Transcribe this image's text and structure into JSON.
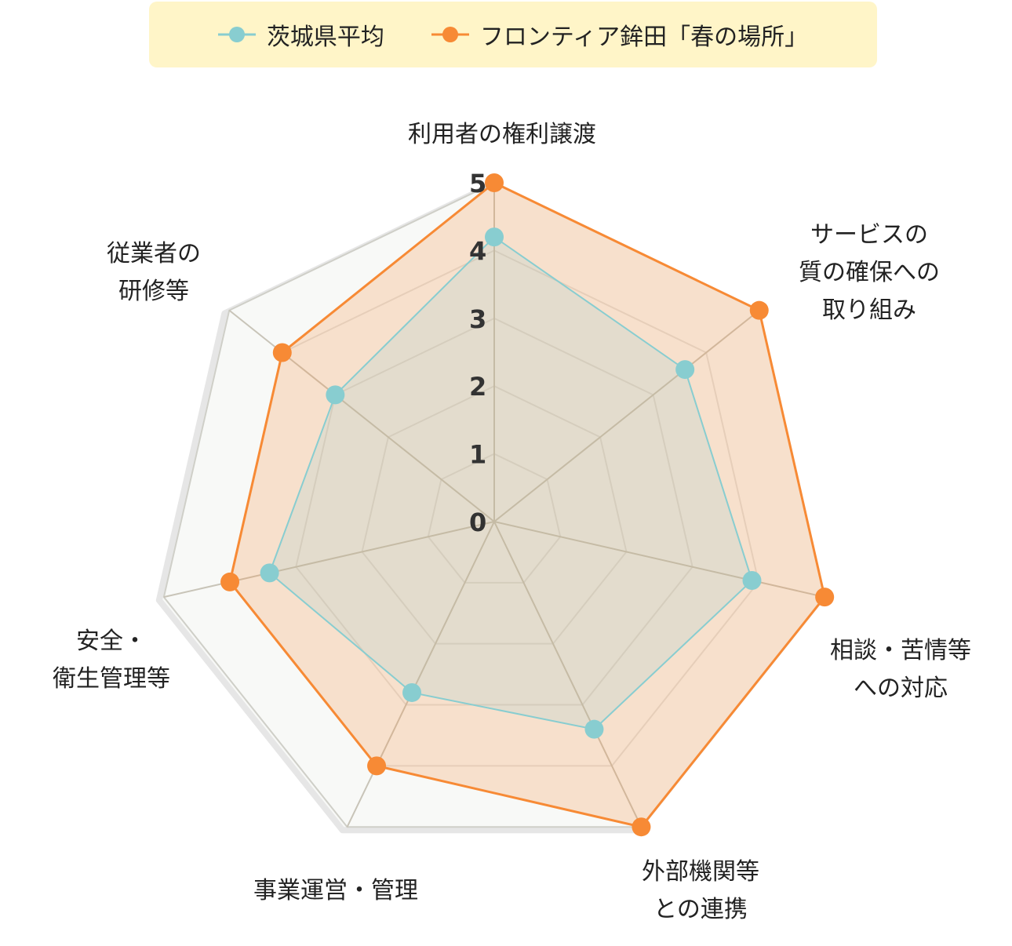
{
  "chart_data": {
    "type": "radar",
    "axes": [
      "利用者の権利譲渡",
      "サービスの\n質の確保への\n取り組み",
      "相談・苦情等\nへの対応",
      "外部機関等\nとの連携",
      "事業運営・管理",
      "安全・\n衛生管理等",
      "従業者の\n研修等"
    ],
    "rlim": [
      0,
      5
    ],
    "ticks": [
      "0",
      "1",
      "2",
      "3",
      "4",
      "5"
    ],
    "series": [
      {
        "name": "茨城県平均",
        "color": "#88cdd0",
        "values": [
          4.2,
          3.6,
          3.9,
          3.4,
          2.8,
          3.4,
          3.0
        ]
      },
      {
        "name": "フロンティア鉾田「春の場所」",
        "color": "#f78a35",
        "values": [
          5,
          5,
          5,
          5,
          4,
          4,
          4
        ]
      }
    ],
    "legend_position": "top"
  }
}
